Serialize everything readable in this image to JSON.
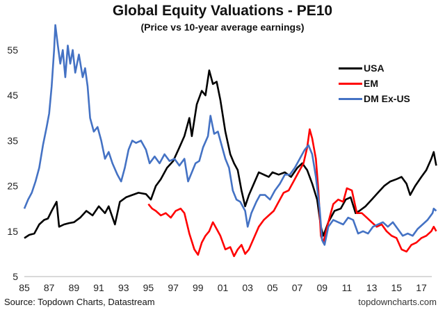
{
  "chart_data": {
    "type": "line",
    "title": "Global Equity Valuations - PE10",
    "subtitle": "(Price vs 10-year average earnings)",
    "xlabel": "",
    "ylabel": "",
    "xlim": [
      1985,
      2018.3
    ],
    "ylim": [
      5,
      60
    ],
    "x_ticks": [
      1985,
      1987,
      1989,
      1991,
      1993,
      1995,
      1997,
      1999,
      2001,
      2003,
      2005,
      2007,
      2009,
      2011,
      2013,
      2015,
      2017
    ],
    "x_tick_labels": [
      "85",
      "87",
      "89",
      "91",
      "93",
      "95",
      "97",
      "99",
      "01",
      "03",
      "05",
      "07",
      "09",
      "11",
      "13",
      "15",
      "17"
    ],
    "y_ticks": [
      5,
      15,
      25,
      35,
      45,
      55
    ],
    "y_tick_labels": [
      "5",
      "15",
      "25",
      "35",
      "45",
      "55"
    ],
    "grid": false,
    "legend_position": "top-right",
    "series": [
      {
        "name": "USA",
        "color": "#000000",
        "points": [
          [
            1985.0,
            13.5
          ],
          [
            1985.4,
            14.2
          ],
          [
            1985.8,
            14.5
          ],
          [
            1986.2,
            16.5
          ],
          [
            1986.6,
            17.5
          ],
          [
            1986.9,
            17.8
          ],
          [
            1987.2,
            19.5
          ],
          [
            1987.6,
            21.5
          ],
          [
            1987.8,
            16.0
          ],
          [
            1988.2,
            16.5
          ],
          [
            1988.6,
            16.8
          ],
          [
            1989.0,
            17.0
          ],
          [
            1989.5,
            18.0
          ],
          [
            1990.0,
            19.5
          ],
          [
            1990.5,
            18.5
          ],
          [
            1991.0,
            20.5
          ],
          [
            1991.5,
            19.0
          ],
          [
            1991.8,
            20.5
          ],
          [
            1992.3,
            16.5
          ],
          [
            1992.7,
            21.5
          ],
          [
            1993.2,
            22.5
          ],
          [
            1993.7,
            23.0
          ],
          [
            1994.2,
            23.5
          ],
          [
            1994.8,
            23.2
          ],
          [
            1995.2,
            22.0
          ],
          [
            1995.6,
            25.0
          ],
          [
            1996.0,
            26.5
          ],
          [
            1996.5,
            29.0
          ],
          [
            1997.0,
            30.5
          ],
          [
            1997.5,
            33.5
          ],
          [
            1997.9,
            36.0
          ],
          [
            1998.3,
            40.0
          ],
          [
            1998.5,
            36.0
          ],
          [
            1998.9,
            43.0
          ],
          [
            1999.3,
            46.0
          ],
          [
            1999.6,
            45.0
          ],
          [
            1999.9,
            50.5
          ],
          [
            2000.2,
            47.5
          ],
          [
            2000.5,
            48.0
          ],
          [
            2000.8,
            44.0
          ],
          [
            2001.2,
            37.0
          ],
          [
            2001.6,
            32.0
          ],
          [
            2001.9,
            30.0
          ],
          [
            2002.2,
            28.5
          ],
          [
            2002.5,
            24.0
          ],
          [
            2002.8,
            20.5
          ],
          [
            2003.1,
            23.0
          ],
          [
            2003.5,
            25.5
          ],
          [
            2003.9,
            28.0
          ],
          [
            2004.3,
            27.5
          ],
          [
            2004.7,
            27.0
          ],
          [
            2005.0,
            28.0
          ],
          [
            2005.5,
            27.5
          ],
          [
            2006.0,
            28.0
          ],
          [
            2006.5,
            27.0
          ],
          [
            2007.0,
            29.0
          ],
          [
            2007.4,
            30.0
          ],
          [
            2007.8,
            28.5
          ],
          [
            2008.2,
            25.5
          ],
          [
            2008.6,
            22.0
          ],
          [
            2008.9,
            16.0
          ],
          [
            2009.1,
            14.0
          ],
          [
            2009.5,
            17.0
          ],
          [
            2010.0,
            19.5
          ],
          [
            2010.5,
            20.0
          ],
          [
            2010.9,
            22.0
          ],
          [
            2011.3,
            22.5
          ],
          [
            2011.7,
            19.0
          ],
          [
            2012.0,
            19.5
          ],
          [
            2012.5,
            20.5
          ],
          [
            2013.0,
            22.0
          ],
          [
            2013.5,
            23.5
          ],
          [
            2014.0,
            25.0
          ],
          [
            2014.5,
            26.0
          ],
          [
            2015.0,
            26.5
          ],
          [
            2015.4,
            27.0
          ],
          [
            2015.8,
            25.5
          ],
          [
            2016.1,
            23.0
          ],
          [
            2016.5,
            25.0
          ],
          [
            2017.0,
            27.0
          ],
          [
            2017.4,
            28.5
          ],
          [
            2017.8,
            31.0
          ],
          [
            2018.0,
            32.5
          ],
          [
            2018.2,
            29.5
          ]
        ]
      },
      {
        "name": "EM",
        "color": "#ff0000",
        "points": [
          [
            1995.0,
            21.0
          ],
          [
            1995.3,
            20.0
          ],
          [
            1995.6,
            19.5
          ],
          [
            1996.0,
            18.5
          ],
          [
            1996.4,
            19.0
          ],
          [
            1996.8,
            18.0
          ],
          [
            1997.2,
            19.5
          ],
          [
            1997.6,
            20.0
          ],
          [
            1997.9,
            19.0
          ],
          [
            1998.3,
            14.5
          ],
          [
            1998.7,
            11.0
          ],
          [
            1999.0,
            9.8
          ],
          [
            1999.3,
            12.5
          ],
          [
            1999.6,
            14.0
          ],
          [
            1999.9,
            15.0
          ],
          [
            2000.2,
            17.0
          ],
          [
            2000.5,
            15.5
          ],
          [
            2000.8,
            14.0
          ],
          [
            2001.2,
            11.0
          ],
          [
            2001.6,
            11.5
          ],
          [
            2001.9,
            9.5
          ],
          [
            2002.2,
            11.0
          ],
          [
            2002.5,
            12.0
          ],
          [
            2002.8,
            10.0
          ],
          [
            2003.1,
            11.0
          ],
          [
            2003.5,
            13.5
          ],
          [
            2003.9,
            16.0
          ],
          [
            2004.3,
            17.5
          ],
          [
            2004.7,
            18.5
          ],
          [
            2005.1,
            19.5
          ],
          [
            2005.5,
            21.5
          ],
          [
            2005.9,
            23.5
          ],
          [
            2006.3,
            24.0
          ],
          [
            2006.7,
            26.0
          ],
          [
            2007.1,
            28.0
          ],
          [
            2007.5,
            30.0
          ],
          [
            2007.8,
            33.5
          ],
          [
            2008.0,
            37.5
          ],
          [
            2008.2,
            35.5
          ],
          [
            2008.5,
            31.0
          ],
          [
            2008.7,
            24.0
          ],
          [
            2008.9,
            14.0
          ],
          [
            2009.1,
            12.5
          ],
          [
            2009.5,
            17.0
          ],
          [
            2009.9,
            21.0
          ],
          [
            2010.3,
            22.0
          ],
          [
            2010.7,
            21.5
          ],
          [
            2011.0,
            24.5
          ],
          [
            2011.4,
            24.0
          ],
          [
            2011.8,
            19.0
          ],
          [
            2012.2,
            19.0
          ],
          [
            2012.6,
            18.0
          ],
          [
            2013.0,
            17.0
          ],
          [
            2013.4,
            16.0
          ],
          [
            2013.8,
            16.5
          ],
          [
            2014.2,
            15.0
          ],
          [
            2014.6,
            14.0
          ],
          [
            2015.0,
            13.5
          ],
          [
            2015.4,
            11.0
          ],
          [
            2015.8,
            10.5
          ],
          [
            2016.2,
            12.0
          ],
          [
            2016.6,
            12.5
          ],
          [
            2017.0,
            13.5
          ],
          [
            2017.4,
            14.0
          ],
          [
            2017.8,
            15.0
          ],
          [
            2018.0,
            16.0
          ],
          [
            2018.2,
            15.0
          ]
        ]
      },
      {
        "name": "DM Ex-US",
        "color": "#4472c4",
        "points": [
          [
            1985.0,
            20.0
          ],
          [
            1985.3,
            22.0
          ],
          [
            1985.6,
            23.5
          ],
          [
            1985.9,
            26.0
          ],
          [
            1986.2,
            29.0
          ],
          [
            1986.5,
            34.0
          ],
          [
            1986.8,
            38.0
          ],
          [
            1987.0,
            41.0
          ],
          [
            1987.2,
            47.0
          ],
          [
            1987.4,
            55.0
          ],
          [
            1987.5,
            60.5
          ],
          [
            1987.7,
            56.0
          ],
          [
            1987.9,
            52.0
          ],
          [
            1988.1,
            55.0
          ],
          [
            1988.3,
            49.0
          ],
          [
            1988.5,
            56.0
          ],
          [
            1988.7,
            52.0
          ],
          [
            1988.9,
            55.0
          ],
          [
            1989.1,
            50.0
          ],
          [
            1989.4,
            54.0
          ],
          [
            1989.7,
            49.0
          ],
          [
            1989.9,
            51.0
          ],
          [
            1990.1,
            47.0
          ],
          [
            1990.3,
            40.0
          ],
          [
            1990.6,
            37.0
          ],
          [
            1990.9,
            38.0
          ],
          [
            1991.2,
            35.0
          ],
          [
            1991.5,
            31.0
          ],
          [
            1991.8,
            32.5
          ],
          [
            1992.1,
            30.0
          ],
          [
            1992.5,
            27.5
          ],
          [
            1992.8,
            26.0
          ],
          [
            1993.1,
            29.0
          ],
          [
            1993.4,
            33.0
          ],
          [
            1993.7,
            35.0
          ],
          [
            1994.0,
            34.5
          ],
          [
            1994.4,
            35.0
          ],
          [
            1994.8,
            33.0
          ],
          [
            1995.1,
            30.0
          ],
          [
            1995.5,
            31.5
          ],
          [
            1995.9,
            30.0
          ],
          [
            1996.3,
            32.0
          ],
          [
            1996.7,
            30.5
          ],
          [
            1997.1,
            31.0
          ],
          [
            1997.5,
            29.5
          ],
          [
            1997.9,
            31.0
          ],
          [
            1998.2,
            26.0
          ],
          [
            1998.5,
            28.0
          ],
          [
            1998.8,
            30.0
          ],
          [
            1999.1,
            30.5
          ],
          [
            1999.4,
            33.5
          ],
          [
            1999.8,
            36.0
          ],
          [
            2000.0,
            40.5
          ],
          [
            2000.3,
            36.5
          ],
          [
            2000.6,
            37.0
          ],
          [
            2000.9,
            34.0
          ],
          [
            2001.2,
            31.0
          ],
          [
            2001.5,
            29.0
          ],
          [
            2001.8,
            24.0
          ],
          [
            2002.1,
            22.0
          ],
          [
            2002.4,
            21.5
          ],
          [
            2002.8,
            19.5
          ],
          [
            2003.0,
            16.0
          ],
          [
            2003.3,
            19.0
          ],
          [
            2003.7,
            21.5
          ],
          [
            2004.0,
            23.0
          ],
          [
            2004.4,
            23.0
          ],
          [
            2004.8,
            22.0
          ],
          [
            2005.2,
            24.0
          ],
          [
            2005.6,
            25.5
          ],
          [
            2006.0,
            27.5
          ],
          [
            2006.4,
            27.5
          ],
          [
            2006.8,
            29.0
          ],
          [
            2007.2,
            31.0
          ],
          [
            2007.6,
            33.0
          ],
          [
            2007.9,
            34.0
          ],
          [
            2008.2,
            32.0
          ],
          [
            2008.5,
            27.0
          ],
          [
            2008.8,
            20.0
          ],
          [
            2009.0,
            13.0
          ],
          [
            2009.2,
            12.0
          ],
          [
            2009.5,
            16.0
          ],
          [
            2009.9,
            17.5
          ],
          [
            2010.3,
            17.0
          ],
          [
            2010.7,
            16.5
          ],
          [
            2011.1,
            18.0
          ],
          [
            2011.5,
            17.5
          ],
          [
            2011.9,
            14.5
          ],
          [
            2012.3,
            15.0
          ],
          [
            2012.7,
            14.5
          ],
          [
            2013.1,
            16.0
          ],
          [
            2013.5,
            16.5
          ],
          [
            2013.9,
            17.0
          ],
          [
            2014.3,
            16.0
          ],
          [
            2014.7,
            17.0
          ],
          [
            2015.1,
            15.5
          ],
          [
            2015.5,
            14.0
          ],
          [
            2015.9,
            14.5
          ],
          [
            2016.3,
            14.0
          ],
          [
            2016.7,
            15.5
          ],
          [
            2017.1,
            16.5
          ],
          [
            2017.5,
            17.5
          ],
          [
            2017.9,
            19.0
          ],
          [
            2018.0,
            20.0
          ],
          [
            2018.2,
            19.5
          ]
        ]
      }
    ]
  },
  "legend": {
    "items": [
      {
        "label": "USA",
        "color": "#000000"
      },
      {
        "label": "EM",
        "color": "#ff0000"
      },
      {
        "label": "DM Ex-US",
        "color": "#4472c4"
      }
    ]
  },
  "footer": {
    "source": "Source: Topdown Charts, Datastream",
    "website": "topdowncharts.com"
  }
}
